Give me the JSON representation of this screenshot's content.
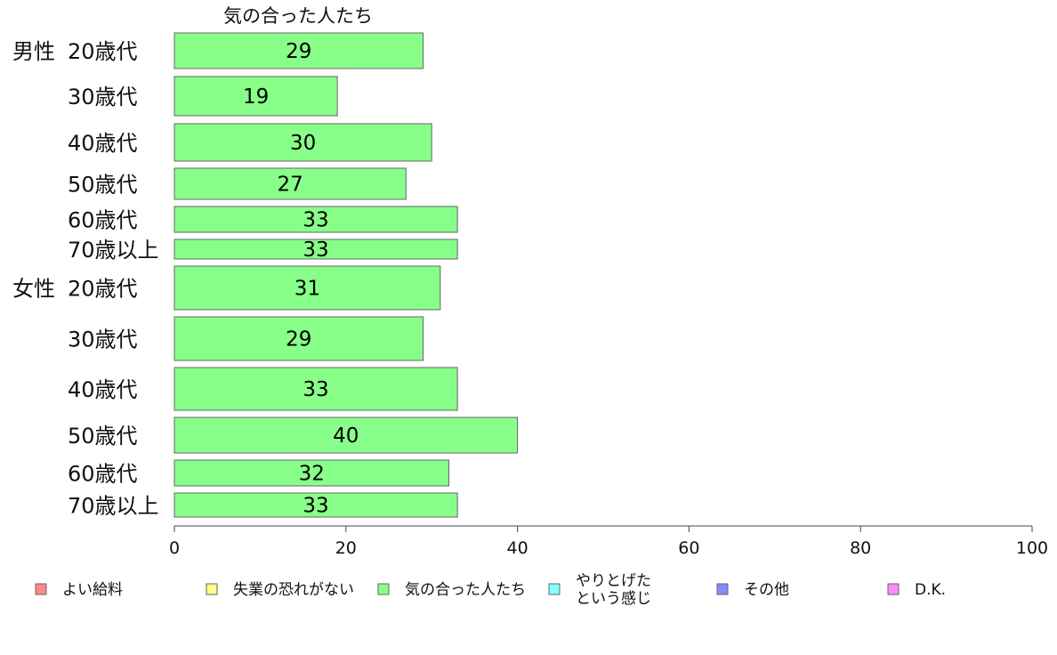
{
  "chart_data": {
    "type": "bar",
    "orientation": "horizontal",
    "title": "気の合った人たち",
    "groups": [
      "男性",
      "女性"
    ],
    "categories": [
      {
        "group": "男性",
        "label": "20歳代",
        "value": 29
      },
      {
        "group": "男性",
        "label": "30歳代",
        "value": 19
      },
      {
        "group": "男性",
        "label": "40歳代",
        "value": 30
      },
      {
        "group": "男性",
        "label": "50歳代",
        "value": 27
      },
      {
        "group": "男性",
        "label": "60歳代",
        "value": 33
      },
      {
        "group": "男性",
        "label": "70歳以上",
        "value": 33
      },
      {
        "group": "女性",
        "label": "20歳代",
        "value": 31
      },
      {
        "group": "女性",
        "label": "30歳代",
        "value": 29
      },
      {
        "group": "女性",
        "label": "40歳代",
        "value": 33
      },
      {
        "group": "女性",
        "label": "50歳代",
        "value": 40
      },
      {
        "group": "女性",
        "label": "60歳代",
        "value": 32
      },
      {
        "group": "女性",
        "label": "70歳以上",
        "value": 33
      }
    ],
    "xlim": [
      0,
      100
    ],
    "xticks": [
      0,
      20,
      40,
      60,
      80,
      100
    ],
    "bar_color": "#88ff88",
    "bar_stroke": "#666666",
    "grid": false,
    "legend_position": "bottom",
    "legend": [
      {
        "label": "よい給料",
        "color": "#ff8888"
      },
      {
        "label": "失業の恐れがない",
        "color": "#ffff88"
      },
      {
        "label": "気の合った人たち",
        "color": "#88ff88"
      },
      {
        "label": "やりとげた\nという感じ",
        "color": "#88ffff"
      },
      {
        "label": "その他",
        "color": "#8888ff"
      },
      {
        "label": "D.K.",
        "color": "#ff88ff"
      }
    ]
  }
}
